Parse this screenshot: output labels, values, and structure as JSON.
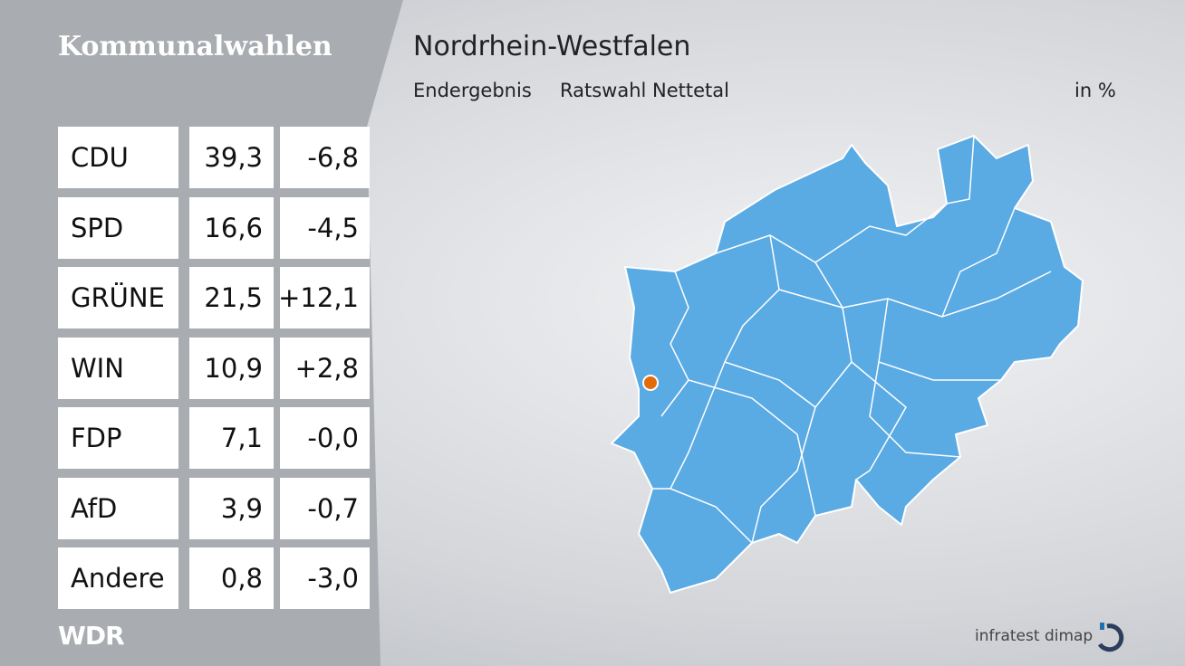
{
  "header": {
    "title": "Kommunalwahlen",
    "region": "Nordrhein-Westfalen",
    "result_type": "Endergebnis",
    "election": "Ratswahl Nettetal",
    "unit": "in %"
  },
  "table": {
    "rows": [
      [
        "CDU",
        "39,3",
        "-6,8"
      ],
      [
        "SPD",
        "16,6",
        "-4,5"
      ],
      [
        "GRÜNE",
        "21,5",
        "+12,1"
      ],
      [
        "WIN",
        "10,9",
        "+2,8"
      ],
      [
        "FDP",
        "7,1",
        "-0,0"
      ],
      [
        "AfD",
        "3,9",
        "-0,7"
      ],
      [
        "Andere",
        "0,8",
        "-3,0"
      ]
    ]
  },
  "footer": {
    "broadcaster": "WDR",
    "pollster": "infratest dimap"
  }
}
